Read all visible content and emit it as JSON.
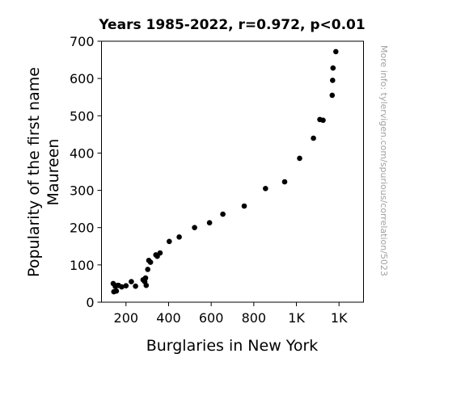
{
  "chart_data": {
    "type": "scatter",
    "title": "Years 1985-2022, r=0.972, p<0.01",
    "xlabel": "Burglaries in New York",
    "ylabel_lines": [
      "Popularity of the first name",
      "Maureen"
    ],
    "side_note": "More info: tylervigen.com/spurious/correlation/5023",
    "xlim": [
      85,
      1315
    ],
    "ylim": [
      0,
      700
    ],
    "x_ticks": [
      {
        "value": 200,
        "label": "200"
      },
      {
        "value": 400,
        "label": "400"
      },
      {
        "value": 600,
        "label": "600"
      },
      {
        "value": 800,
        "label": "800"
      },
      {
        "value": 1000,
        "label": "1K"
      },
      {
        "value": 1200,
        "label": "1K"
      }
    ],
    "y_ticks": [
      {
        "value": 0,
        "label": "0"
      },
      {
        "value": 100,
        "label": "100"
      },
      {
        "value": 200,
        "label": "200"
      },
      {
        "value": 300,
        "label": "300"
      },
      {
        "value": 400,
        "label": "400"
      },
      {
        "value": 500,
        "label": "500"
      },
      {
        "value": 600,
        "label": "600"
      },
      {
        "value": 700,
        "label": "700"
      }
    ],
    "grid": false,
    "marker_color": "#000000",
    "points": [
      {
        "x": 140,
        "y": 50
      },
      {
        "x": 143,
        "y": 28
      },
      {
        "x": 150,
        "y": 42
      },
      {
        "x": 155,
        "y": 30
      },
      {
        "x": 160,
        "y": 45
      },
      {
        "x": 165,
        "y": 45
      },
      {
        "x": 180,
        "y": 41
      },
      {
        "x": 200,
        "y": 44
      },
      {
        "x": 225,
        "y": 55
      },
      {
        "x": 245,
        "y": 43
      },
      {
        "x": 280,
        "y": 60
      },
      {
        "x": 288,
        "y": 55
      },
      {
        "x": 292,
        "y": 65
      },
      {
        "x": 295,
        "y": 45
      },
      {
        "x": 302,
        "y": 88
      },
      {
        "x": 307,
        "y": 112
      },
      {
        "x": 315,
        "y": 107
      },
      {
        "x": 340,
        "y": 127
      },
      {
        "x": 347,
        "y": 123
      },
      {
        "x": 360,
        "y": 132
      },
      {
        "x": 403,
        "y": 163
      },
      {
        "x": 450,
        "y": 175
      },
      {
        "x": 522,
        "y": 200
      },
      {
        "x": 592,
        "y": 213
      },
      {
        "x": 655,
        "y": 236
      },
      {
        "x": 755,
        "y": 258
      },
      {
        "x": 855,
        "y": 305
      },
      {
        "x": 945,
        "y": 323
      },
      {
        "x": 1015,
        "y": 386
      },
      {
        "x": 1080,
        "y": 440
      },
      {
        "x": 1110,
        "y": 490
      },
      {
        "x": 1125,
        "y": 488
      },
      {
        "x": 1168,
        "y": 555
      },
      {
        "x": 1170,
        "y": 595
      },
      {
        "x": 1172,
        "y": 628
      },
      {
        "x": 1185,
        "y": 672
      }
    ]
  }
}
